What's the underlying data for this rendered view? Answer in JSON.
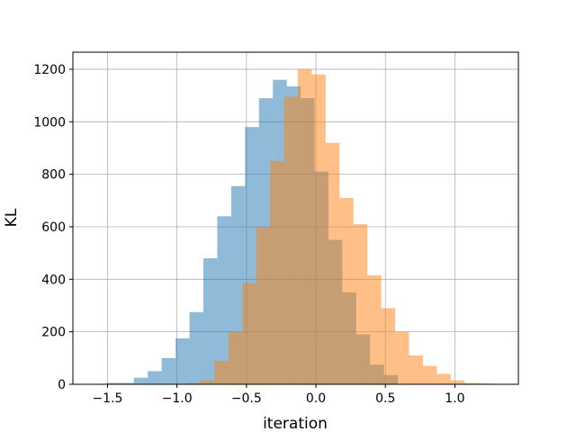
{
  "chart_data": {
    "type": "histogram",
    "xlabel": "iteration",
    "ylabel": "KL",
    "series": [
      {
        "color": "#1f77b4",
        "alpha": 0.5,
        "bins": [
          -1.51,
          -1.41,
          -1.31,
          -1.21,
          -1.11,
          -1.01,
          -0.91,
          -0.81,
          -0.71,
          -0.61,
          -0.51,
          -0.41,
          -0.31,
          -0.21,
          -0.11,
          -0.01,
          0.09,
          0.19,
          0.29,
          0.39,
          0.49,
          0.59
        ],
        "values": [
          5,
          5,
          25,
          50,
          100,
          175,
          275,
          480,
          640,
          755,
          980,
          1090,
          1160,
          1135,
          1090,
          810,
          550,
          350,
          190,
          75,
          35
        ]
      },
      {
        "color": "#ff7f0e",
        "alpha": 0.5,
        "bins": [
          -0.93,
          -0.83,
          -0.73,
          -0.63,
          -0.53,
          -0.43,
          -0.33,
          -0.23,
          -0.13,
          -0.03,
          0.07,
          0.17,
          0.27,
          0.37,
          0.47,
          0.57,
          0.67,
          0.77,
          0.87,
          0.97,
          1.07,
          1.17,
          1.27
        ],
        "values": [
          5,
          15,
          90,
          200,
          385,
          600,
          850,
          1095,
          1200,
          1180,
          920,
          710,
          610,
          415,
          290,
          200,
          110,
          70,
          40,
          15,
          5,
          3
        ]
      }
    ],
    "xlim": [
      -1.749,
      1.457
    ],
    "ylim": [
      0,
      1265
    ],
    "xticks": [
      {
        "value": -1.5,
        "label": "−1.5"
      },
      {
        "value": -1.0,
        "label": "−1.0"
      },
      {
        "value": -0.5,
        "label": "−0.5"
      },
      {
        "value": 0,
        "label": "0.0"
      },
      0.5,
      {
        "value": 1,
        "label": "1.0"
      }
    ],
    "yticks": [
      0,
      200,
      400,
      600,
      800,
      1000,
      1200
    ],
    "grid": true
  }
}
